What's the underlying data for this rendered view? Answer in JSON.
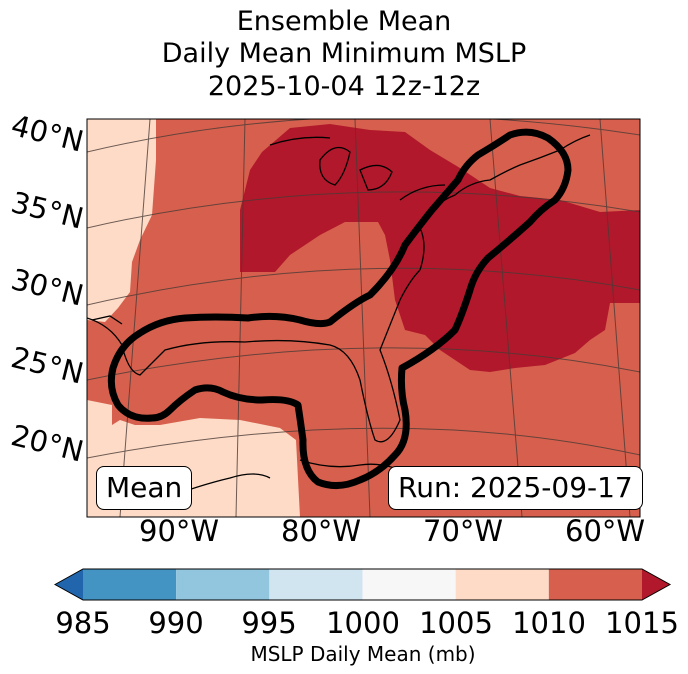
{
  "title": {
    "line1": "Ensemble Mean",
    "line2": "Daily Mean Minimum MSLP",
    "line3": "2025-10-04 12z-12z"
  },
  "map": {
    "lat_labels": [
      "40°N",
      "35°N",
      "30°N",
      "25°N",
      "20°N"
    ],
    "lon_labels": [
      "90°W",
      "80°W",
      "70°W",
      "60°W"
    ],
    "mean_badge": "Mean",
    "run_badge": "Run: 2025-09-17",
    "fill_colors": {
      "band_1005_1010": "#fddbc7",
      "band_1010_1015": "#d6604d",
      "band_above_1015": "#b2182b"
    },
    "contour_color": "#000000"
  },
  "colorbar": {
    "label": "MSLP Daily Mean (mb)",
    "ticks": [
      "985",
      "990",
      "995",
      "1000",
      "1005",
      "1010",
      "1015"
    ],
    "bins": [
      {
        "from": 985,
        "to": 990,
        "color": "#4393c3"
      },
      {
        "from": 990,
        "to": 995,
        "color": "#92c5de"
      },
      {
        "from": 995,
        "to": 1000,
        "color": "#d1e5f0"
      },
      {
        "from": 1000,
        "to": 1005,
        "color": "#f7f7f7"
      },
      {
        "from": 1005,
        "to": 1010,
        "color": "#fddbc7"
      },
      {
        "from": 1010,
        "to": 1015,
        "color": "#d6604d"
      }
    ],
    "under_color": "#2166ac",
    "over_color": "#b2182b"
  }
}
